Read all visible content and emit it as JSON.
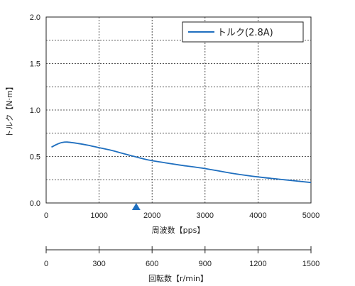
{
  "chart_data": {
    "type": "line",
    "x_axis": {
      "label": "周波数【pps】",
      "range": [
        0,
        5000
      ],
      "ticks": [
        0,
        1000,
        2000,
        3000,
        4000,
        5000
      ],
      "tick_labels": [
        "0",
        "1000",
        "2000",
        "3000",
        "4000",
        "5000"
      ]
    },
    "y_axis": {
      "label": "トルク【N·m】",
      "range": [
        0,
        2.0
      ],
      "ticks": [
        0,
        0.5,
        1.0,
        1.5,
        2.0
      ],
      "tick_labels": [
        "0.0",
        "0.5",
        "1.0",
        "1.5",
        "2.0"
      ],
      "minor_gridlines": [
        0.25,
        0.75,
        1.25,
        1.75
      ]
    },
    "secondary_x_axis": {
      "label": "回転数【r/min】",
      "range": [
        0,
        1500
      ],
      "ticks": [
        0,
        300,
        600,
        900,
        1200,
        1500
      ],
      "tick_labels": [
        "0",
        "300",
        "600",
        "900",
        "1200",
        "1500"
      ]
    },
    "grid": true,
    "legend_position": "top-right",
    "series": [
      {
        "name": "トルク(2.8A)",
        "color": "#1f6fbf",
        "x": [
          100,
          200,
          300,
          400,
          600,
          800,
          1000,
          1200,
          1400,
          1600,
          1800,
          2000,
          2500,
          3000,
          3500,
          4000,
          4500,
          5000
        ],
        "y": [
          0.6,
          0.63,
          0.65,
          0.655,
          0.64,
          0.62,
          0.595,
          0.57,
          0.54,
          0.51,
          0.48,
          0.455,
          0.41,
          0.37,
          0.32,
          0.28,
          0.25,
          0.22
        ]
      }
    ],
    "marker": {
      "shape": "triangle",
      "x": 1700,
      "color": "#1f6fbf"
    }
  }
}
